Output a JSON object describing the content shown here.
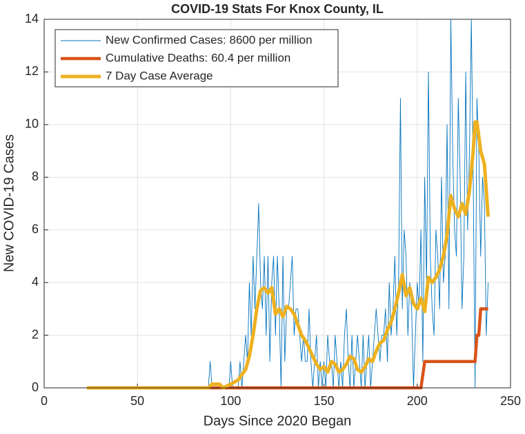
{
  "chart_data": {
    "type": "line",
    "title": "COVID-19 Stats For Knox County, IL",
    "xlabel": "Days Since 2020 Began",
    "ylabel": "New COVID-19 Cases",
    "xlim": [
      0,
      250
    ],
    "xticks": [
      0,
      50,
      100,
      150,
      200,
      250
    ],
    "ylim": [
      0,
      14
    ],
    "yticks": [
      0,
      2,
      4,
      6,
      8,
      10,
      12,
      14
    ],
    "grid": true,
    "legend": "upper left",
    "series": [
      {
        "name": "New Confirmed Cases: 8600 per million",
        "color": "#0072bd",
        "width": 0.9,
        "x": [
          23,
          24,
          25,
          26,
          27,
          28,
          29,
          30,
          31,
          32,
          33,
          34,
          35,
          36,
          37,
          38,
          39,
          40,
          41,
          42,
          43,
          44,
          45,
          46,
          47,
          48,
          49,
          50,
          51,
          52,
          53,
          54,
          55,
          56,
          57,
          58,
          59,
          60,
          61,
          62,
          63,
          64,
          65,
          66,
          67,
          68,
          69,
          70,
          71,
          72,
          73,
          74,
          75,
          76,
          77,
          78,
          79,
          80,
          81,
          82,
          83,
          84,
          85,
          86,
          87,
          88,
          89,
          90,
          91,
          92,
          93,
          94,
          95,
          96,
          97,
          98,
          99,
          100,
          101,
          102,
          103,
          104,
          105,
          106,
          107,
          108,
          109,
          110,
          111,
          112,
          113,
          114,
          115,
          116,
          117,
          118,
          119,
          120,
          121,
          122,
          123,
          124,
          125,
          126,
          127,
          128,
          129,
          130,
          131,
          132,
          133,
          134,
          135,
          136,
          137,
          138,
          139,
          140,
          141,
          142,
          143,
          144,
          145,
          146,
          147,
          148,
          149,
          150,
          151,
          152,
          153,
          154,
          155,
          156,
          157,
          158,
          159,
          160,
          161,
          162,
          163,
          164,
          165,
          166,
          167,
          168,
          169,
          170,
          171,
          172,
          173,
          174,
          175,
          176,
          177,
          178,
          179,
          180,
          181,
          182,
          183,
          184,
          185,
          186,
          187,
          188,
          189,
          190,
          191,
          192,
          193,
          194,
          195,
          196,
          197,
          198,
          199,
          200,
          201,
          202,
          203,
          204,
          205,
          206,
          207,
          208,
          209,
          210,
          211,
          212,
          213,
          214,
          215,
          216,
          217,
          218,
          219,
          220,
          221,
          222,
          223,
          224,
          225,
          226,
          227,
          228,
          229,
          230,
          231,
          232,
          233,
          234,
          235,
          236,
          237,
          238
        ],
        "values": [
          0,
          0,
          0,
          0,
          0,
          0,
          0,
          0,
          0,
          0,
          0,
          0,
          0,
          0,
          0,
          0,
          0,
          0,
          0,
          0,
          0,
          0,
          0,
          0,
          0,
          0,
          0,
          0,
          0,
          0,
          0,
          0,
          0,
          0,
          0,
          0,
          0,
          0,
          0,
          0,
          0,
          0,
          0,
          0,
          0,
          0,
          0,
          0,
          0,
          0,
          0,
          0,
          0,
          0,
          0,
          0,
          0,
          0,
          0,
          0,
          0,
          0,
          0,
          0,
          0,
          0,
          1,
          0,
          0,
          0,
          0,
          0,
          0,
          0,
          0,
          0,
          0,
          1,
          0,
          0,
          0,
          0,
          1,
          0,
          1,
          2,
          1,
          4,
          2,
          5,
          3,
          5,
          7,
          4,
          3,
          5,
          2,
          5,
          1,
          4,
          5,
          2,
          5,
          3,
          0,
          5,
          1,
          3,
          3,
          4,
          5,
          2,
          3,
          3,
          2,
          1,
          2,
          1,
          1,
          3,
          1,
          0,
          1,
          2,
          0,
          1,
          0,
          1,
          0,
          2,
          1,
          1,
          0,
          2,
          1,
          0,
          1,
          0,
          2,
          3,
          1,
          0,
          2,
          0,
          1,
          2,
          1,
          0,
          2,
          0,
          1,
          2,
          0,
          1,
          2,
          3,
          2,
          1,
          2,
          2,
          3,
          1,
          4,
          2,
          3,
          5,
          2,
          4,
          11,
          3,
          6,
          5,
          2,
          4,
          3,
          0,
          2,
          4,
          3,
          6,
          1,
          8,
          4,
          12,
          5,
          3,
          2,
          6,
          5,
          3,
          8,
          4,
          5,
          10,
          3,
          14,
          9,
          6,
          5,
          11,
          8,
          3,
          5,
          12,
          6,
          9,
          14,
          8,
          0,
          11,
          9,
          5,
          8,
          7,
          2,
          4
        ]
      },
      {
        "name": "Cumulative Deaths: 60.4 per million",
        "color": "#d95319",
        "width": 4.5,
        "x": [
          23,
          202,
          204,
          231,
          232,
          233,
          234,
          238
        ],
        "values": [
          0,
          0,
          1,
          1,
          2,
          2,
          3,
          3
        ]
      },
      {
        "name": "7 Day Case Average",
        "color": "#edb120",
        "width": 5,
        "x": [
          23,
          88,
          90,
          94,
          96,
          100,
          104,
          108,
          110,
          112,
          114,
          116,
          118,
          120,
          122,
          124,
          126,
          128,
          130,
          132,
          134,
          136,
          138,
          140,
          142,
          144,
          146,
          148,
          150,
          152,
          154,
          156,
          158,
          160,
          162,
          164,
          166,
          168,
          170,
          172,
          174,
          176,
          178,
          180,
          182,
          184,
          186,
          188,
          190,
          192,
          194,
          196,
          198,
          200,
          202,
          204,
          206,
          208,
          210,
          212,
          214,
          216,
          218,
          220,
          222,
          224,
          226,
          228,
          230,
          231,
          232,
          234,
          236,
          238
        ],
        "values": [
          0,
          0,
          0.14,
          0.14,
          0,
          0.14,
          0.3,
          0.7,
          1.2,
          2.0,
          3.0,
          3.7,
          3.8,
          3.6,
          3.8,
          2.8,
          3.0,
          2.7,
          3.1,
          3.0,
          2.8,
          2.4,
          2.0,
          1.8,
          1.5,
          1.2,
          0.9,
          0.7,
          0.8,
          0.6,
          1.0,
          0.9,
          0.6,
          0.7,
          0.9,
          1.2,
          1.1,
          0.7,
          0.6,
          0.8,
          1.1,
          1.0,
          1.4,
          1.7,
          1.8,
          2.2,
          2.5,
          3.0,
          3.6,
          4.3,
          3.5,
          3.8,
          3.2,
          3.0,
          3.4,
          2.9,
          4.2,
          4.0,
          4.2,
          4.5,
          5.0,
          5.8,
          7.3,
          6.8,
          6.5,
          7.0,
          6.6,
          7.5,
          9.0,
          10.1,
          10.1,
          9.0,
          8.5,
          6.5
        ]
      }
    ]
  }
}
